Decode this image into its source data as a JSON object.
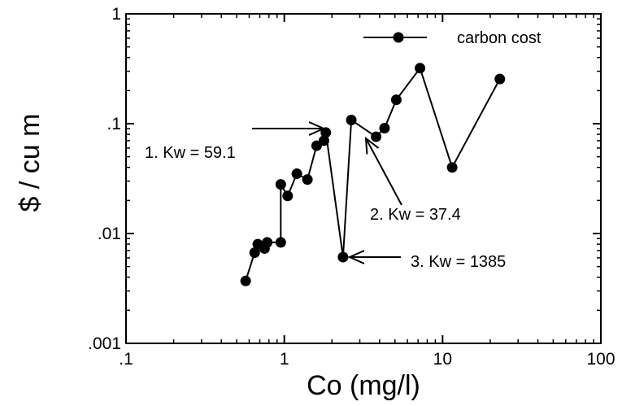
{
  "chart_data": {
    "type": "scatter",
    "xlabel": "Co  (mg/l)",
    "ylabel": "$ / cu m",
    "x_scale": "log",
    "y_scale": "log",
    "xlim": [
      0.1,
      100
    ],
    "ylim": [
      0.001,
      1
    ],
    "x_ticks": [
      {
        "value": 0.1,
        "label": ".1"
      },
      {
        "value": 1,
        "label": "1"
      },
      {
        "value": 10,
        "label": "10"
      },
      {
        "value": 100,
        "label": "100"
      }
    ],
    "y_ticks": [
      {
        "value": 0.001,
        "label": ".001"
      },
      {
        "value": 0.01,
        "label": ".01"
      },
      {
        "value": 0.1,
        "label": ".1"
      },
      {
        "value": 1,
        "label": "1"
      }
    ],
    "grid": false,
    "legend": {
      "position": "top-right",
      "entries": [
        "carbon cost"
      ]
    },
    "series": [
      {
        "name": "carbon cost",
        "x": [
          0.57,
          0.65,
          0.68,
          0.75,
          0.78,
          0.95,
          0.95,
          1.05,
          1.2,
          1.4,
          1.6,
          1.78,
          1.83,
          2.35,
          2.65,
          3.8,
          4.3,
          5.1,
          7.2,
          11.5,
          23
        ],
        "y": [
          0.0037,
          0.0067,
          0.008,
          0.0073,
          0.0083,
          0.0083,
          0.028,
          0.022,
          0.035,
          0.031,
          0.063,
          0.07,
          0.083,
          0.0061,
          0.108,
          0.076,
          0.091,
          0.165,
          0.32,
          0.04,
          0.255
        ]
      }
    ],
    "annotations": [
      {
        "text": "1. Kw = 59.1",
        "target": [
          1.85,
          0.085
        ]
      },
      {
        "text": "2. Kw = 37.4",
        "target": [
          3.2,
          0.075
        ]
      },
      {
        "text": "3. Kw = 1385",
        "target": [
          2.5,
          0.0061
        ]
      }
    ]
  }
}
